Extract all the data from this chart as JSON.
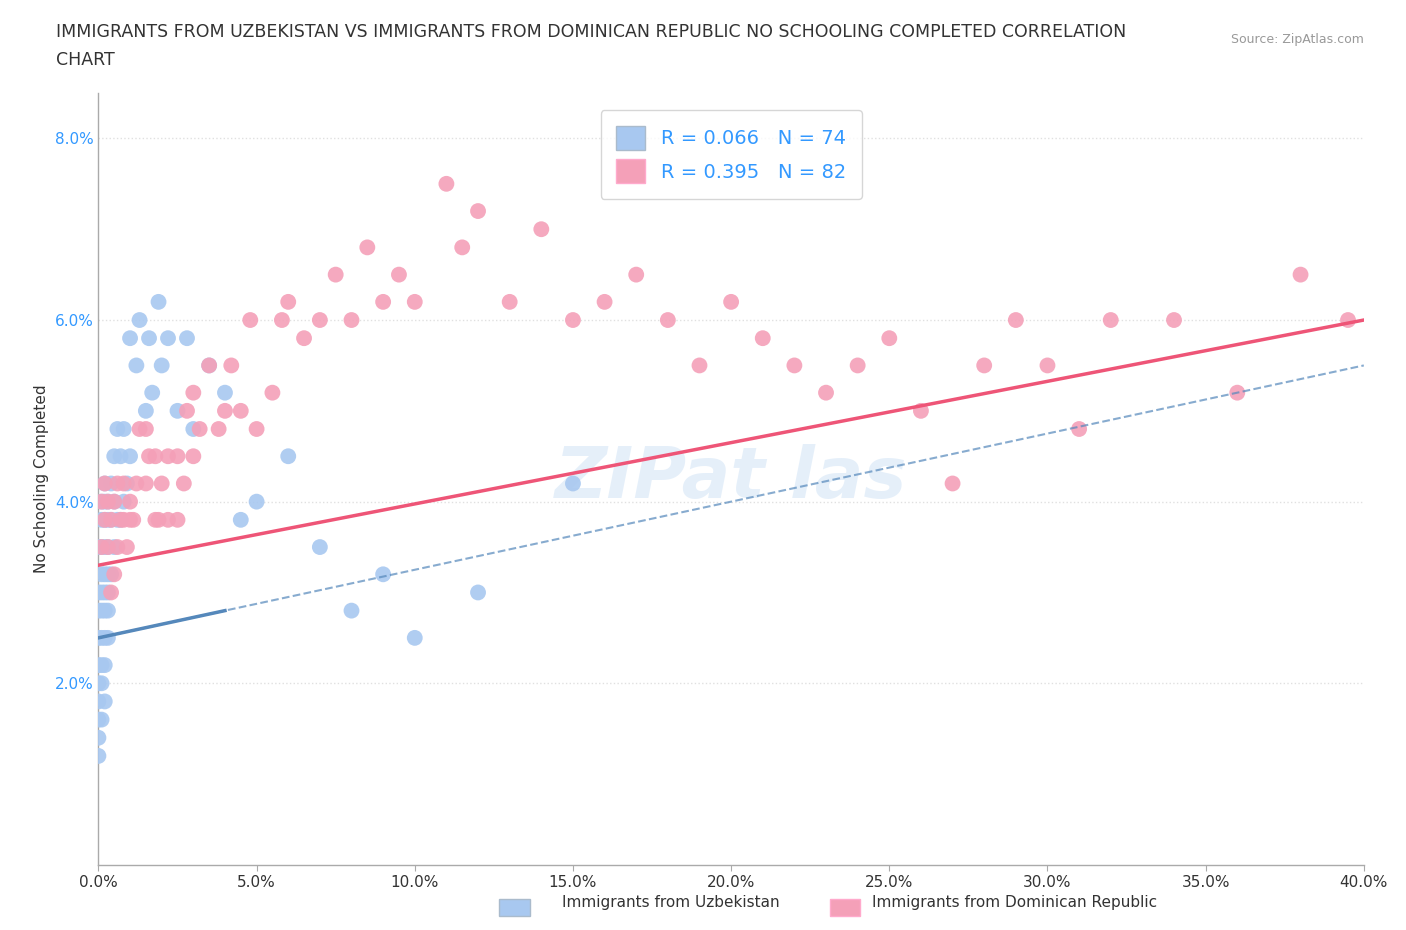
{
  "title_line1": "IMMIGRANTS FROM UZBEKISTAN VS IMMIGRANTS FROM DOMINICAN REPUBLIC NO SCHOOLING COMPLETED CORRELATION",
  "title_line2": "CHART",
  "source_text": "Source: ZipAtlas.com",
  "ylabel": "No Schooling Completed",
  "xlim": [
    0.0,
    0.4
  ],
  "ylim": [
    0.0,
    0.085
  ],
  "xticks": [
    0.0,
    0.05,
    0.1,
    0.15,
    0.2,
    0.25,
    0.3,
    0.35,
    0.4
  ],
  "xtick_labels": [
    "0.0%",
    "5.0%",
    "10.0%",
    "15.0%",
    "20.0%",
    "25.0%",
    "30.0%",
    "35.0%",
    "40.0%"
  ],
  "yticks": [
    0.02,
    0.04,
    0.06,
    0.08
  ],
  "ytick_labels": [
    "2.0%",
    "4.0%",
    "6.0%",
    "8.0%"
  ],
  "blue_color": "#A8C8F0",
  "pink_color": "#F4A0B8",
  "blue_line_color": "#5588BB",
  "pink_line_color": "#EE5577",
  "R_blue": 0.066,
  "N_blue": 74,
  "R_pink": 0.395,
  "N_pink": 82,
  "legend_label_blue": "Immigrants from Uzbekistan",
  "legend_label_pink": "Immigrants from Dominican Republic",
  "grid_color": "#DDDDDD",
  "background_color": "#FFFFFF",
  "title_fontsize": 12.5,
  "axis_label_fontsize": 11,
  "tick_fontsize": 11,
  "blue_x": [
    0.0,
    0.0,
    0.0,
    0.0,
    0.0,
    0.0,
    0.0,
    0.0,
    0.0,
    0.0,
    0.001,
    0.001,
    0.001,
    0.001,
    0.001,
    0.001,
    0.001,
    0.001,
    0.001,
    0.001,
    0.002,
    0.002,
    0.002,
    0.002,
    0.002,
    0.002,
    0.002,
    0.002,
    0.002,
    0.002,
    0.003,
    0.003,
    0.003,
    0.003,
    0.003,
    0.003,
    0.003,
    0.004,
    0.004,
    0.004,
    0.005,
    0.005,
    0.005,
    0.006,
    0.006,
    0.007,
    0.007,
    0.008,
    0.008,
    0.009,
    0.01,
    0.01,
    0.012,
    0.013,
    0.015,
    0.016,
    0.017,
    0.019,
    0.02,
    0.022,
    0.025,
    0.028,
    0.03,
    0.035,
    0.04,
    0.045,
    0.05,
    0.06,
    0.07,
    0.08,
    0.09,
    0.1,
    0.12,
    0.15
  ],
  "blue_y": [
    0.035,
    0.03,
    0.028,
    0.025,
    0.022,
    0.02,
    0.018,
    0.016,
    0.014,
    0.012,
    0.04,
    0.038,
    0.035,
    0.032,
    0.03,
    0.028,
    0.025,
    0.022,
    0.02,
    0.016,
    0.042,
    0.04,
    0.038,
    0.035,
    0.032,
    0.03,
    0.028,
    0.025,
    0.022,
    0.018,
    0.04,
    0.038,
    0.035,
    0.032,
    0.03,
    0.028,
    0.025,
    0.042,
    0.038,
    0.032,
    0.045,
    0.04,
    0.035,
    0.048,
    0.038,
    0.045,
    0.038,
    0.048,
    0.04,
    0.042,
    0.058,
    0.045,
    0.055,
    0.06,
    0.05,
    0.058,
    0.052,
    0.062,
    0.055,
    0.058,
    0.05,
    0.058,
    0.048,
    0.055,
    0.052,
    0.038,
    0.04,
    0.045,
    0.035,
    0.028,
    0.032,
    0.025,
    0.03,
    0.042
  ],
  "pink_x": [
    0.001,
    0.001,
    0.002,
    0.002,
    0.003,
    0.003,
    0.004,
    0.004,
    0.005,
    0.005,
    0.006,
    0.006,
    0.007,
    0.008,
    0.008,
    0.009,
    0.01,
    0.01,
    0.011,
    0.012,
    0.013,
    0.015,
    0.015,
    0.016,
    0.018,
    0.018,
    0.019,
    0.02,
    0.022,
    0.022,
    0.025,
    0.025,
    0.027,
    0.028,
    0.03,
    0.03,
    0.032,
    0.035,
    0.038,
    0.04,
    0.042,
    0.045,
    0.048,
    0.05,
    0.055,
    0.058,
    0.06,
    0.065,
    0.07,
    0.075,
    0.08,
    0.085,
    0.09,
    0.095,
    0.1,
    0.11,
    0.115,
    0.12,
    0.13,
    0.14,
    0.15,
    0.16,
    0.17,
    0.18,
    0.19,
    0.2,
    0.21,
    0.22,
    0.23,
    0.24,
    0.25,
    0.26,
    0.27,
    0.28,
    0.29,
    0.3,
    0.31,
    0.32,
    0.34,
    0.36,
    0.38,
    0.395
  ],
  "pink_y": [
    0.035,
    0.04,
    0.038,
    0.042,
    0.035,
    0.04,
    0.03,
    0.038,
    0.032,
    0.04,
    0.035,
    0.042,
    0.038,
    0.042,
    0.038,
    0.035,
    0.04,
    0.038,
    0.038,
    0.042,
    0.048,
    0.042,
    0.048,
    0.045,
    0.038,
    0.045,
    0.038,
    0.042,
    0.038,
    0.045,
    0.038,
    0.045,
    0.042,
    0.05,
    0.045,
    0.052,
    0.048,
    0.055,
    0.048,
    0.05,
    0.055,
    0.05,
    0.06,
    0.048,
    0.052,
    0.06,
    0.062,
    0.058,
    0.06,
    0.065,
    0.06,
    0.068,
    0.062,
    0.065,
    0.062,
    0.075,
    0.068,
    0.072,
    0.062,
    0.07,
    0.06,
    0.062,
    0.065,
    0.06,
    0.055,
    0.062,
    0.058,
    0.055,
    0.052,
    0.055,
    0.058,
    0.05,
    0.042,
    0.055,
    0.06,
    0.055,
    0.048,
    0.06,
    0.06,
    0.052,
    0.065,
    0.06
  ],
  "blue_trend_x0": 0.0,
  "blue_trend_y0": 0.025,
  "blue_trend_x1": 0.04,
  "blue_trend_y1": 0.028,
  "pink_trend_x0": 0.0,
  "pink_trend_y0": 0.033,
  "pink_trend_x1": 0.4,
  "pink_trend_y1": 0.06
}
